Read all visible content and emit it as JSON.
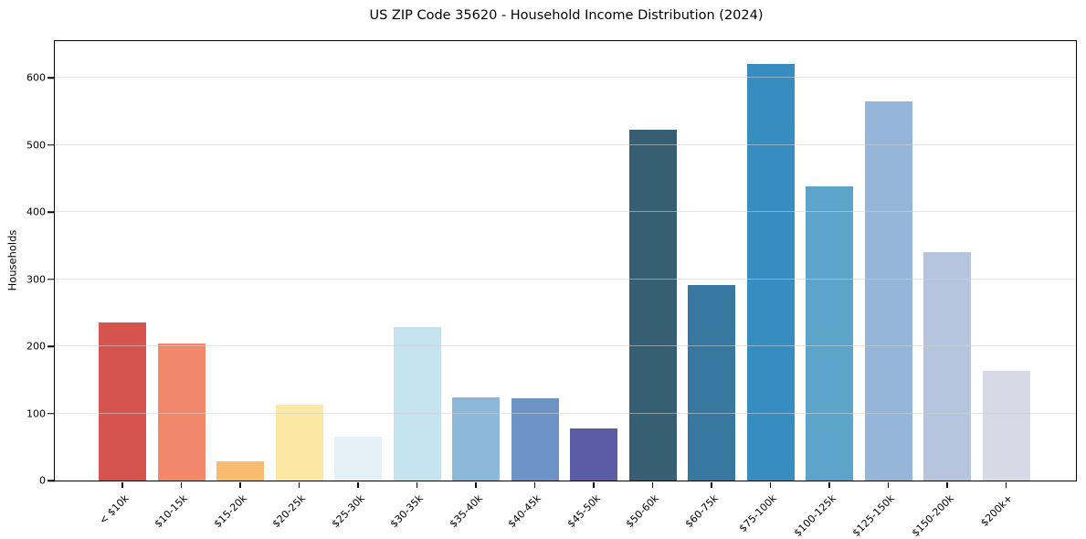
{
  "chart_data": {
    "type": "bar",
    "title": "US ZIP Code 35620 - Household Income Distribution (2024)",
    "xlabel": "",
    "ylabel": "Households",
    "categories": [
      "< $10k",
      "$10-15k",
      "$15-20k",
      "$20-25k",
      "$25-30k",
      "$30-35k",
      "$35-40k",
      "$40-45k",
      "$45-50k",
      "$50-60k",
      "$60-75k",
      "$75-100k",
      "$100-125k",
      "$125-150k",
      "$150-200k",
      "$200k+"
    ],
    "values": [
      236,
      204,
      29,
      113,
      65,
      229,
      124,
      123,
      78,
      523,
      291,
      621,
      438,
      565,
      341,
      163
    ],
    "bar_colors": [
      "#d6544e",
      "#f3876b",
      "#f9bb70",
      "#fde7a3",
      "#e3f1f6",
      "#c5e3ef",
      "#8cb8da",
      "#6d92c5",
      "#5a5ca6",
      "#375f74",
      "#3878a0",
      "#388dc0",
      "#5ca4ca",
      "#96b6d9",
      "#b6c5dd",
      "#d8d9e6"
    ],
    "yticks": [
      0,
      100,
      200,
      300,
      400,
      500,
      600
    ],
    "ylim": [
      0,
      655
    ],
    "grid": "horizontal",
    "grid_color": "#e6e6e6",
    "axis_color": "#000000",
    "background_color": "#ffffff",
    "legend": "none",
    "x_tick_rotation_deg": 45
  }
}
